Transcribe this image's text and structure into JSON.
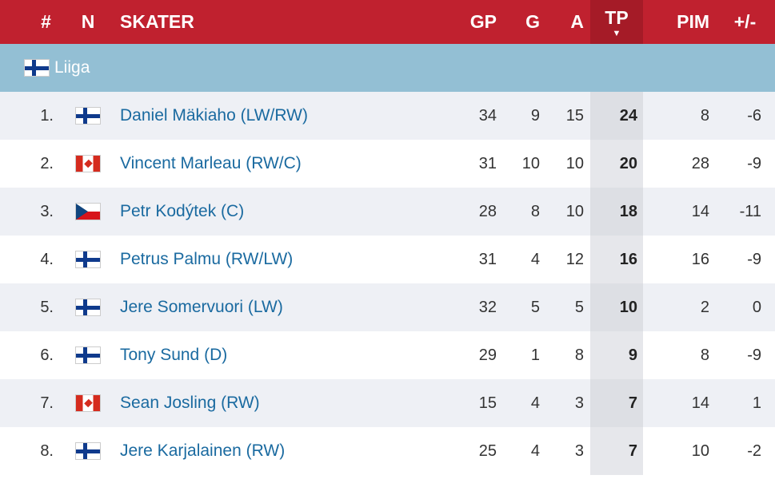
{
  "header": {
    "rank": "#",
    "nation": "N",
    "skater": "SKATER",
    "gp": "GP",
    "g": "G",
    "a": "A",
    "tp": "TP",
    "pim": "PIM",
    "pm": "+/-",
    "sort_indicator": "▼"
  },
  "league": {
    "flag": "finland-flag-icon",
    "name": "Liiga"
  },
  "rows": [
    {
      "rank": "1.",
      "flag": "fi",
      "name": "Daniel Mäkiaho (LW/RW)",
      "gp": "34",
      "g": "9",
      "a": "15",
      "tp": "24",
      "pim": "8",
      "pm": "-6"
    },
    {
      "rank": "2.",
      "flag": "ca",
      "name": "Vincent Marleau (RW/C)",
      "gp": "31",
      "g": "10",
      "a": "10",
      "tp": "20",
      "pim": "28",
      "pm": "-9"
    },
    {
      "rank": "3.",
      "flag": "cz",
      "name": "Petr Kodýtek (C)",
      "gp": "28",
      "g": "8",
      "a": "10",
      "tp": "18",
      "pim": "14",
      "pm": "-11"
    },
    {
      "rank": "4.",
      "flag": "fi",
      "name": "Petrus Palmu (RW/LW)",
      "gp": "31",
      "g": "4",
      "a": "12",
      "tp": "16",
      "pim": "16",
      "pm": "-9"
    },
    {
      "rank": "5.",
      "flag": "fi",
      "name": "Jere Somervuori (LW)",
      "gp": "32",
      "g": "5",
      "a": "5",
      "tp": "10",
      "pim": "2",
      "pm": "0"
    },
    {
      "rank": "6.",
      "flag": "fi",
      "name": "Tony Sund (D)",
      "gp": "29",
      "g": "1",
      "a": "8",
      "tp": "9",
      "pim": "8",
      "pm": "-9"
    },
    {
      "rank": "7.",
      "flag": "ca",
      "name": "Sean Josling (RW)",
      "gp": "15",
      "g": "4",
      "a": "3",
      "tp": "7",
      "pim": "14",
      "pm": "1"
    },
    {
      "rank": "8.",
      "flag": "fi",
      "name": "Jere Karjalainen (RW)",
      "gp": "25",
      "g": "4",
      "a": "3",
      "tp": "7",
      "pim": "10",
      "pm": "-2"
    }
  ],
  "colors": {
    "header_bg": "#c0212f",
    "league_bg": "#93bfd4",
    "link": "#1a6aa0"
  }
}
